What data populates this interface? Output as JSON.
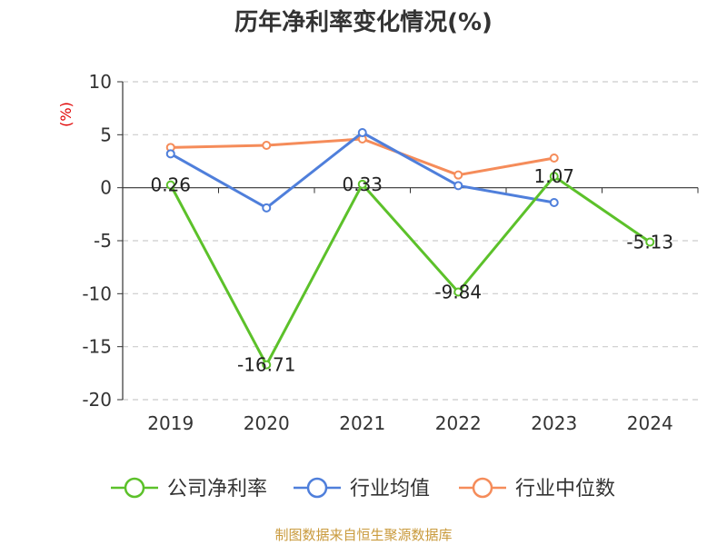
{
  "chart_data": {
    "type": "line",
    "title": "历年净利率变化情况(%)",
    "ylabel": "(%)",
    "categories": [
      "2019",
      "2020",
      "2021",
      "2022",
      "2023",
      "2024"
    ],
    "ylim": [
      -20,
      10
    ],
    "yticks": [
      10,
      5,
      0,
      -5,
      -10,
      -15,
      -20
    ],
    "grid": true,
    "legend_position": "bottom",
    "series": [
      {
        "name": "公司净利率",
        "color": "#5cc12a",
        "values": [
          0.26,
          -16.71,
          0.33,
          -9.84,
          1.07,
          -5.13
        ],
        "labels": [
          "0.26",
          "-16.71",
          "0.33",
          "-9.84",
          "1.07",
          "-5.13"
        ]
      },
      {
        "name": "行业均值",
        "color": "#4f7fdb",
        "values": [
          3.2,
          -1.9,
          5.2,
          0.2,
          -1.4,
          null
        ]
      },
      {
        "name": "行业中位数",
        "color": "#f58c5a",
        "values": [
          3.8,
          4.0,
          4.6,
          1.2,
          2.8,
          null
        ]
      }
    ]
  },
  "source": "制图数据来自恒生聚源数据库"
}
